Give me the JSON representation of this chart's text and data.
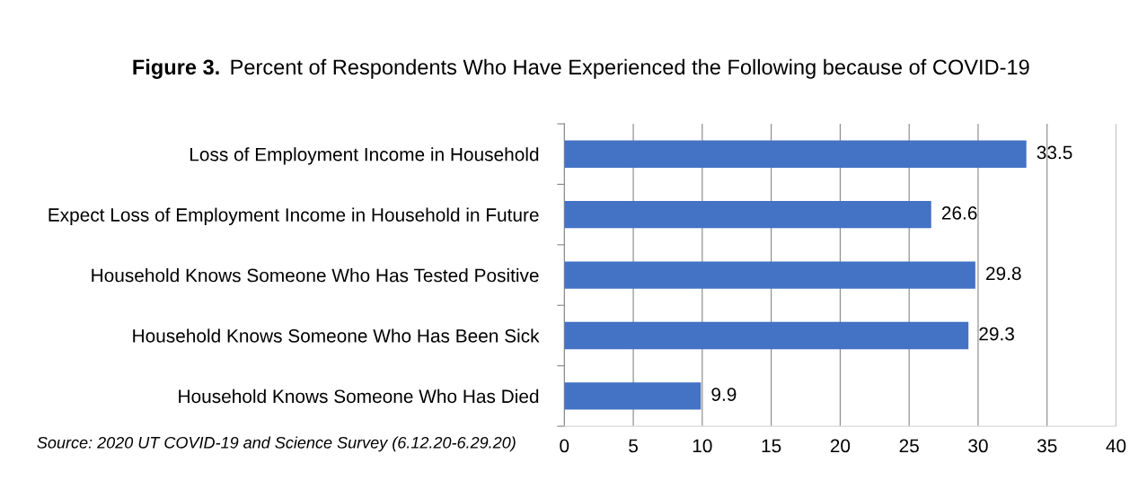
{
  "chart_data": {
    "type": "bar",
    "orientation": "horizontal",
    "title": "Figure 3.",
    "subtitle": "Percent of Respondents Who Have Experienced the Following because of COVID-19",
    "categories": [
      "Loss of Employment Income in Household",
      "Expect Loss of Employment Income in Household in Future",
      "Household Knows Someone Who Has Tested Positive",
      "Household Knows Someone Who Has Been Sick",
      "Household Knows Someone Who Has Died"
    ],
    "values": [
      33.5,
      26.6,
      29.8,
      29.3,
      9.9
    ],
    "color": "#4472c4",
    "xlim": [
      0,
      40
    ],
    "xticks": [
      0,
      5,
      10,
      15,
      20,
      25,
      30,
      35,
      40
    ],
    "grid": "x",
    "data_labels": true,
    "legend": false,
    "annotations": [
      "Source: 2020 UT COVID-19 and Science Survey (6.12.20-6.29.20)"
    ]
  }
}
